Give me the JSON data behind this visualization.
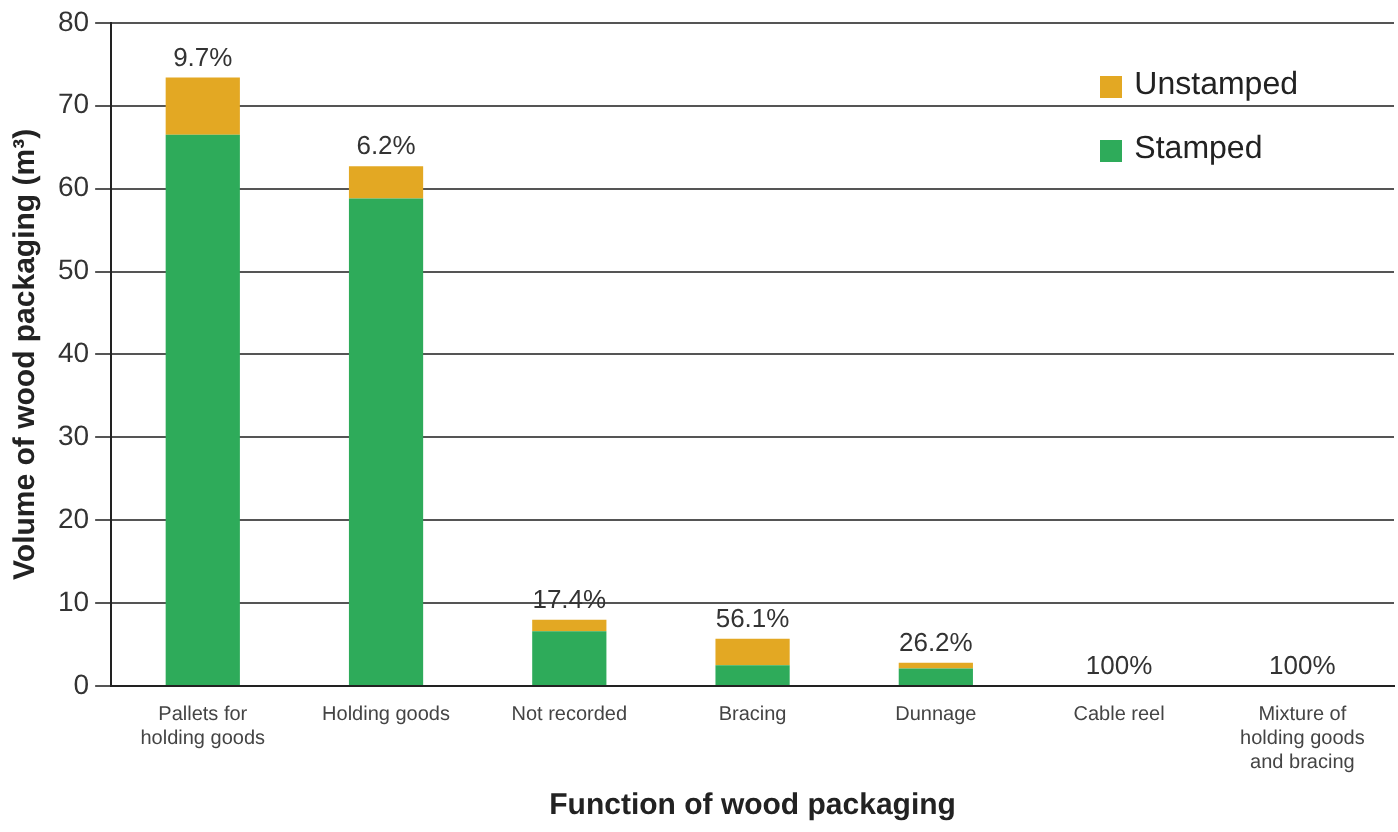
{
  "chart_data": {
    "type": "bar",
    "stacked": true,
    "xlabel": "Function of wood packaging",
    "ylabel": "Volume of wood packaging (m³)",
    "categories": [
      "Pallets for holding goods",
      "Holding goods",
      "Not recorded",
      "Bracing",
      "Dunnage",
      "Cable reel",
      "Mixture of holding goods and bracing"
    ],
    "series": [
      {
        "name": "Stamped",
        "color": "#2eab5a",
        "values": [
          66.5,
          58.8,
          6.6,
          2.5,
          2.1,
          0,
          0
        ]
      },
      {
        "name": "Unstamped",
        "color": "#e3a823",
        "values": [
          6.9,
          3.9,
          1.4,
          3.2,
          0.7,
          null,
          null
        ]
      }
    ],
    "ylim": [
      0,
      80
    ],
    "yticks": [
      0,
      10,
      20,
      30,
      40,
      50,
      60,
      70,
      80
    ],
    "grid": "y",
    "legend": "top right",
    "annotations": [
      {
        "text": "9.7%",
        "x": "Pallets for holding goods",
        "y": 73.4
      },
      {
        "text": "6.2%",
        "x": "Holding goods",
        "y": 62.7
      },
      {
        "text": "17.4%",
        "x": "Not recorded",
        "y": 8
      },
      {
        "text": "56.1%",
        "x": "Bracing",
        "y": 5.7
      },
      {
        "text": "26.2%",
        "x": "Dunnage",
        "y": 2.8
      },
      {
        "text": "100%",
        "x": "Cable reel",
        "y": 0
      },
      {
        "text": "100%",
        "x": "Mixture of holding goods and bracing",
        "y": 0
      }
    ]
  }
}
